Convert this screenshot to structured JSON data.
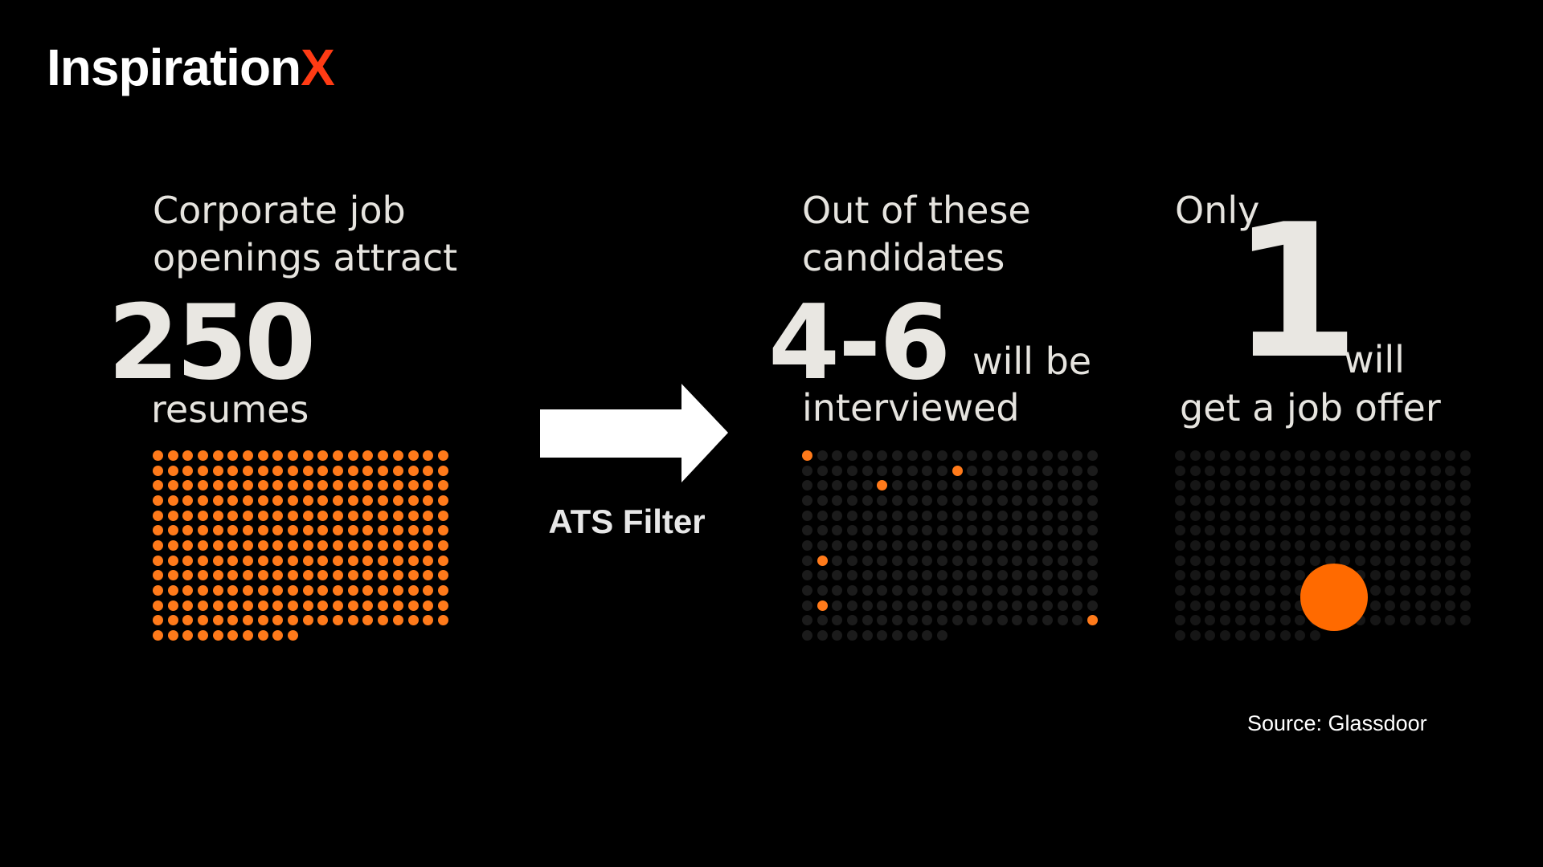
{
  "logo": {
    "text": "Inspiration",
    "accent": "X",
    "accent_color": "#ff3b14"
  },
  "panel_resumes": {
    "caption_line1": "Corporate job",
    "caption_line2": "openings attract",
    "number": "250",
    "label": "resumes",
    "dot_count": 250,
    "dot_color": "#ff7a1a"
  },
  "filter": {
    "label": "ATS Filter"
  },
  "panel_interviewed": {
    "caption_line1": "Out of these",
    "caption_line2": "candidates",
    "number": "4-6",
    "suffix": "will be",
    "label": "interviewed",
    "highlight_color": "#ff7a1a",
    "dim_color": "#1b1b1b"
  },
  "panel_offer": {
    "caption": "Only",
    "number": "1",
    "suffix": "will",
    "label": "get a job offer",
    "highlight_color": "#ff6a00",
    "dim_color": "#161616"
  },
  "source": {
    "text": "Source: Glassdoor"
  }
}
